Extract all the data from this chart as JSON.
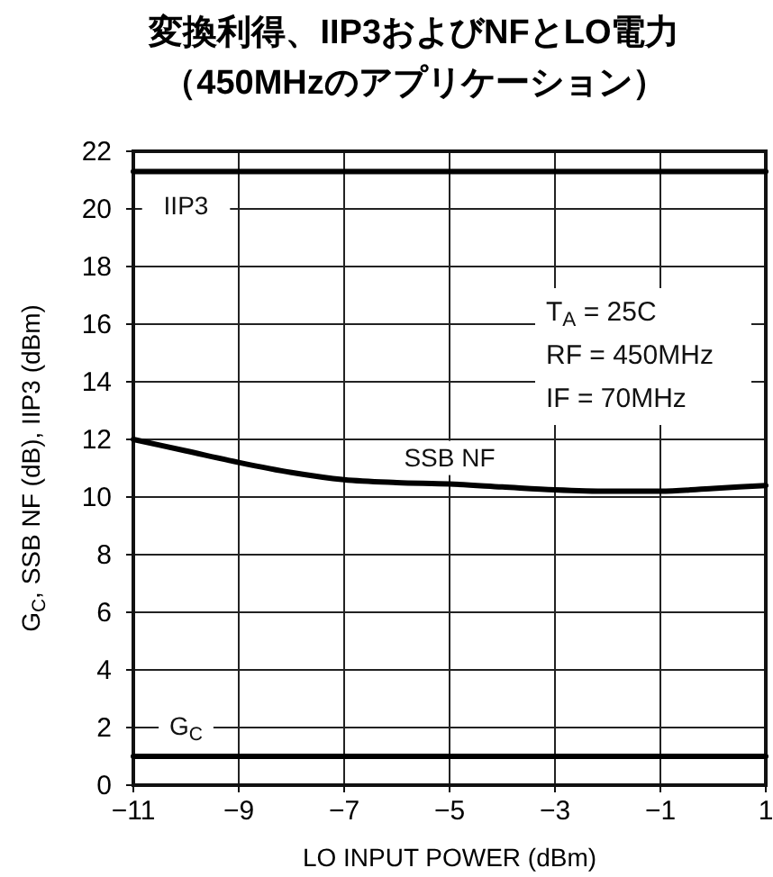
{
  "chart_data": {
    "type": "line",
    "title": "変換利得、IIP3およびNFとLO電力",
    "subtitle": "（450MHzのアプリケーション）",
    "xlabel": "LO INPUT POWER (dBm)",
    "ylabel": "G$_{C}$, SSB NF (dB), IIP3 (dBm)",
    "x": [
      -11,
      -10,
      -9,
      -8,
      -7,
      -6,
      -5,
      -4,
      -3,
      -2,
      -1,
      0,
      1
    ],
    "series": [
      {
        "name": "IIP3",
        "color": "#000000",
        "values": [
          21.3,
          21.3,
          21.3,
          21.3,
          21.3,
          21.3,
          21.3,
          21.3,
          21.3,
          21.3,
          21.3,
          21.3,
          21.3
        ]
      },
      {
        "name": "SSB NF",
        "color": "#000000",
        "values": [
          12,
          11.6,
          11.2,
          10.85,
          10.6,
          10.5,
          10.45,
          10.35,
          10.25,
          10.2,
          10.2,
          10.3,
          10.4
        ]
      },
      {
        "name": "G$_{C}$",
        "color": "#000000",
        "values": [
          1,
          1,
          1,
          1,
          1,
          1,
          1,
          1,
          1,
          1,
          1,
          1,
          1
        ]
      }
    ],
    "xlim": [
      -11,
      1
    ],
    "xticks": [
      -11,
      -9,
      -7,
      -5,
      -3,
      -1,
      1
    ],
    "ylim": [
      0,
      22
    ],
    "yticks": [
      0,
      2,
      4,
      6,
      8,
      10,
      12,
      14,
      16,
      18,
      20,
      22
    ],
    "grid": true,
    "marker": "none",
    "line_style": "solid",
    "annotations": [
      "T$_{A}$ = 25C",
      "RF = 450MHz",
      "IF = 70MHz"
    ]
  }
}
